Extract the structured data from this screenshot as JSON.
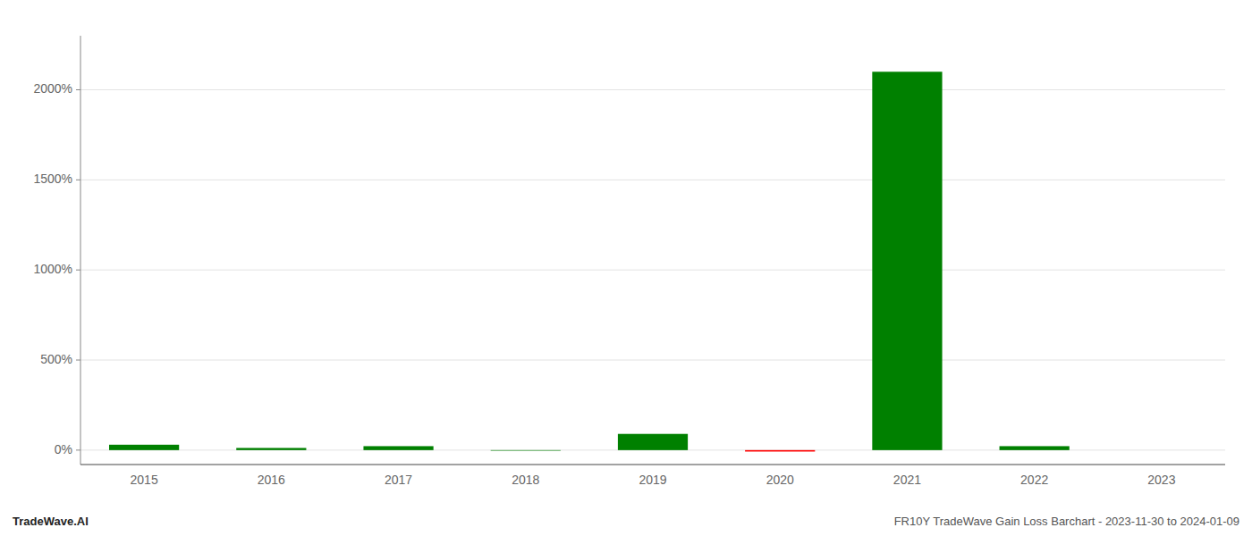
{
  "chart_data": {
    "type": "bar",
    "categories": [
      "2015",
      "2016",
      "2017",
      "2018",
      "2019",
      "2020",
      "2021",
      "2022",
      "2023"
    ],
    "values": [
      30,
      12,
      22,
      -3,
      90,
      -8,
      2100,
      22,
      0
    ],
    "colors": [
      "#008000",
      "#008000",
      "#008000",
      "#008000",
      "#008000",
      "#ff0000",
      "#008000",
      "#008000",
      "#008000"
    ],
    "ylim": [
      -80,
      2300
    ],
    "yticks": [
      {
        "value": 0,
        "label": "0%"
      },
      {
        "value": 500,
        "label": "500%"
      },
      {
        "value": 1000,
        "label": "1000%"
      },
      {
        "value": 1500,
        "label": "1500%"
      },
      {
        "value": 2000,
        "label": "2000%"
      }
    ],
    "grid": true,
    "annotations": [
      "TradeWave.AI",
      "FR10Y TradeWave Gain Loss Barchart - 2023-11-30 to 2024-01-09"
    ]
  }
}
